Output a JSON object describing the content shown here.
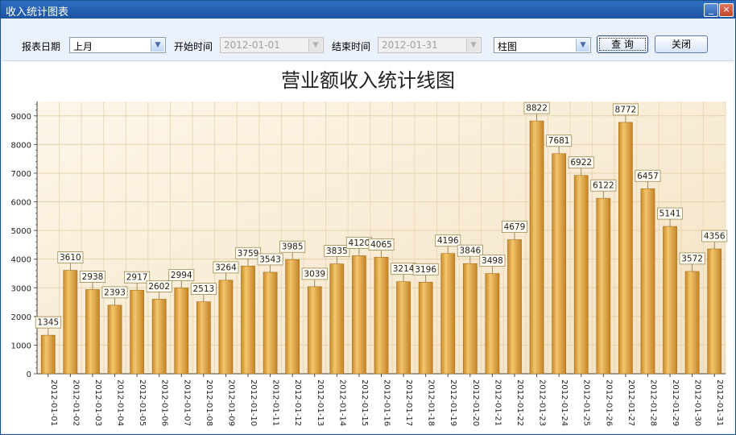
{
  "window": {
    "title": "收入统计图表",
    "minimize_glyph": "_",
    "close_glyph": "×"
  },
  "toolbar": {
    "report_date_label": "报表日期",
    "report_date_value": "上月",
    "start_label": "开始时间",
    "start_value": "2012-01-01",
    "end_label": "结束时间",
    "end_value": "2012-01-31",
    "chart_type_value": "柱图",
    "query_label": "查 询",
    "close_label": "关闭"
  },
  "colors": {
    "bar": "#e0a43a",
    "bar_dark": "#b9781e",
    "bar_light": "#f2c46a",
    "plot_bg": "#f6ead2",
    "label_border": "#a08a50"
  },
  "chart_data": {
    "type": "bar",
    "title": "营业额收入统计线图",
    "categories": [
      "2012-01-01",
      "2012-01-02",
      "2012-01-03",
      "2012-01-04",
      "2012-01-05",
      "2012-01-06",
      "2012-01-07",
      "2012-01-08",
      "2012-01-09",
      "2012-01-10",
      "2012-01-11",
      "2012-01-12",
      "2012-01-13",
      "2012-01-14",
      "2012-01-15",
      "2012-01-16",
      "2012-01-17",
      "2012-01-18",
      "2012-01-19",
      "2012-01-20",
      "2012-01-21",
      "2012-01-22",
      "2012-01-23",
      "2012-01-24",
      "2012-01-25",
      "2012-01-26",
      "2012-01-27",
      "2012-01-28",
      "2012-01-29",
      "2012-01-30",
      "2012-01-31"
    ],
    "values": [
      1345,
      3610,
      2938,
      2393,
      2917,
      2602,
      2994,
      2513,
      3264,
      3759,
      3543,
      3985,
      3039,
      3835,
      4120,
      4065,
      3214,
      3196,
      4196,
      3846,
      3498,
      4679,
      8822,
      7681,
      6922,
      6122,
      8772,
      6457,
      5141,
      3572,
      4356
    ],
    "yticks": [
      0,
      1000,
      2000,
      3000,
      4000,
      5000,
      6000,
      7000,
      8000,
      9000
    ],
    "ylim": [
      0,
      9500
    ],
    "grid": true,
    "legend": "none",
    "data_labels": true
  }
}
